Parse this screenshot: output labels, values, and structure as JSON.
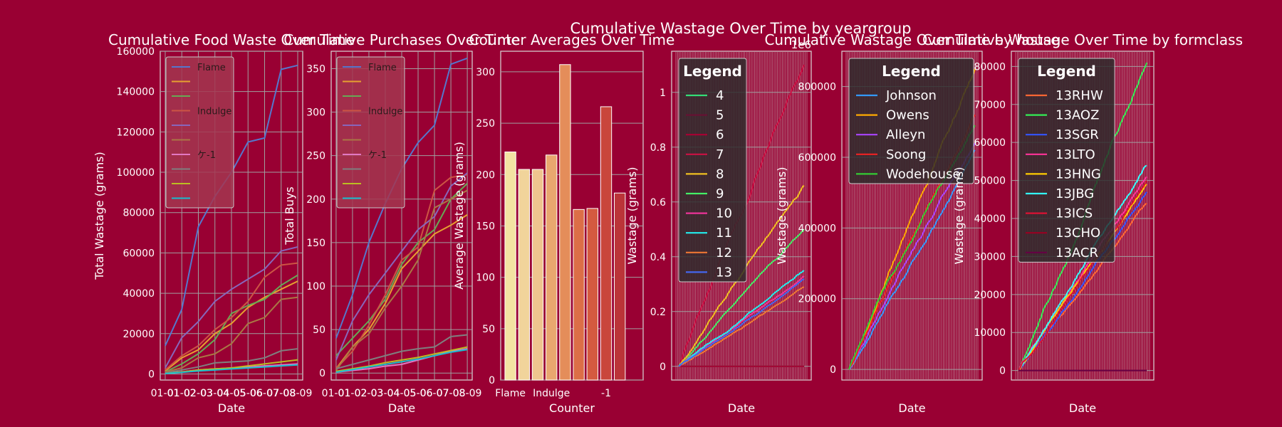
{
  "figure": {
    "suptitle": "Cumulative Wastage Over Time by yeargroup",
    "colors": {
      "background": "#990033",
      "panel_edge": "#d9d9d9",
      "grid": "#a0a0a0",
      "text": "#ffffff"
    }
  },
  "chart_data": [
    {
      "id": "food-waste",
      "type": "line",
      "title": "Cumulative Food Waste Over Time",
      "xlabel": "Date",
      "ylabel": "Total Wastage (grams)",
      "x": [
        "01-01",
        "01-02",
        "02-03",
        "03-04",
        "04-05",
        "05-06",
        "06-07",
        "07-08",
        "08-09"
      ],
      "xlim": [
        -0.3,
        8.3
      ],
      "ylim": [
        -3000,
        160000
      ],
      "yticks": [
        0,
        20000,
        40000,
        60000,
        80000,
        100000,
        120000,
        140000,
        160000
      ],
      "series": [
        {
          "name": "Flame",
          "color": "#5577cc",
          "values": [
            14000,
            32000,
            73000,
            88000,
            100000,
            115000,
            117000,
            151000,
            153000
          ]
        },
        {
          "name": "",
          "color": "#e6a030",
          "values": [
            1500,
            8000,
            12000,
            20000,
            25000,
            33000,
            38000,
            42000,
            46000
          ]
        },
        {
          "name": "",
          "color": "#66aa55",
          "values": [
            1000,
            5000,
            10000,
            17000,
            30000,
            34000,
            37000,
            44000,
            49000
          ]
        },
        {
          "name": "Indulge",
          "color": "#cc5544",
          "values": [
            2000,
            9000,
            14000,
            22000,
            28000,
            36000,
            48000,
            54000,
            55000
          ]
        },
        {
          "name": "",
          "color": "#8866bb",
          "values": [
            3000,
            18000,
            26000,
            36000,
            42000,
            47000,
            52000,
            61000,
            63000
          ]
        },
        {
          "name": "",
          "color": "#aa7744",
          "values": [
            1000,
            3000,
            8000,
            10000,
            15000,
            25000,
            28000,
            37000,
            38000
          ]
        },
        {
          "name": "ケ-1",
          "color": "#e377c2",
          "values": [
            500,
            1000,
            2000,
            2500,
            3000,
            3500,
            4000,
            4500,
            5000
          ]
        },
        {
          "name": "",
          "color": "#7f7f7f",
          "values": [
            500,
            2000,
            3500,
            5500,
            6000,
            6500,
            8000,
            11500,
            12500
          ]
        },
        {
          "name": "",
          "color": "#bcbd22",
          "values": [
            200,
            1000,
            2000,
            2500,
            3000,
            4000,
            5000,
            6000,
            7000
          ]
        },
        {
          "name": "",
          "color": "#17becf",
          "values": [
            200,
            800,
            1500,
            2000,
            2500,
            3000,
            3500,
            4000,
            4500
          ]
        }
      ]
    },
    {
      "id": "purchases",
      "type": "line",
      "title": "Cumulative Purchases Over Time",
      "xlabel": "Date",
      "ylabel": "Total Buys",
      "x": [
        "01-01",
        "01-02",
        "02-03",
        "03-04",
        "04-05",
        "05-06",
        "06-07",
        "07-08",
        "08-09"
      ],
      "xlim": [
        -0.3,
        8.3
      ],
      "ylim": [
        -8,
        370
      ],
      "yticks": [
        0,
        50,
        100,
        150,
        200,
        250,
        300,
        350
      ],
      "series": [
        {
          "name": "Flame",
          "color": "#5577cc",
          "values": [
            40,
            90,
            150,
            195,
            235,
            265,
            285,
            355,
            362
          ]
        },
        {
          "name": "",
          "color": "#e6a030",
          "values": [
            5,
            30,
            50,
            80,
            120,
            140,
            160,
            170,
            182
          ]
        },
        {
          "name": "",
          "color": "#66aa55",
          "values": [
            20,
            40,
            60,
            85,
            125,
            150,
            165,
            200,
            218
          ]
        },
        {
          "name": "Indulge",
          "color": "#cc5544",
          "values": [
            5,
            25,
            55,
            90,
            130,
            145,
            210,
            225,
            228
          ]
        },
        {
          "name": "",
          "color": "#8866bb",
          "values": [
            15,
            60,
            90,
            115,
            140,
            165,
            180,
            215,
            230
          ]
        },
        {
          "name": "",
          "color": "#aa7744",
          "values": [
            3,
            30,
            45,
            75,
            100,
            130,
            190,
            200,
            210
          ]
        },
        {
          "name": "ケ-1",
          "color": "#e377c2",
          "values": [
            1,
            3,
            5,
            8,
            10,
            15,
            20,
            25,
            28
          ]
        },
        {
          "name": "",
          "color": "#7f7f7f",
          "values": [
            5,
            10,
            15,
            20,
            25,
            28,
            30,
            42,
            44
          ]
        },
        {
          "name": "",
          "color": "#bcbd22",
          "values": [
            2,
            5,
            8,
            12,
            15,
            18,
            22,
            26,
            30
          ]
        },
        {
          "name": "",
          "color": "#17becf",
          "values": [
            1,
            4,
            7,
            10,
            13,
            16,
            20,
            24,
            27
          ]
        }
      ]
    },
    {
      "id": "counter-averages",
      "type": "bar",
      "title": "Counter Averages Over Time",
      "xlabel": "Counter",
      "ylabel": "Average Wastage (grams)",
      "categories": [
        "Flame",
        "",
        "",
        "Indulge",
        "",
        "",
        "",
        "-1",
        "",
        ""
      ],
      "values": [
        222,
        205,
        205,
        219,
        307,
        166,
        167,
        266,
        182,
        0
      ],
      "colors": [
        "#f3e3a2",
        "#f1d49b",
        "#efc48e",
        "#e9a76f",
        "#e48d5a",
        "#dc6e47",
        "#d45a40",
        "#c9463c",
        "#bb3438",
        "#a82632"
      ],
      "ylim": [
        0,
        320
      ],
      "yticks": [
        0,
        50,
        100,
        150,
        200,
        250,
        300
      ]
    },
    {
      "id": "yeargroup",
      "type": "line",
      "title": "",
      "xlabel": "Date",
      "ylabel": "Wastage (grams)",
      "offset_label": "1e6",
      "ylim": [
        -0.05,
        1.15
      ],
      "yticks": [
        0.0,
        0.2,
        0.4,
        0.6,
        0.8,
        1.0
      ],
      "legend_title": "Legend",
      "legend": [
        "4",
        "5",
        "6",
        "7",
        "8",
        "9",
        "10",
        "11",
        "12",
        "13"
      ],
      "series": [
        {
          "name": "4",
          "color": "#33dd77",
          "end": 0.0
        },
        {
          "name": "5",
          "color": "#661133",
          "end": 0.0
        },
        {
          "name": "6",
          "color": "#aa0033",
          "end": 0.0
        },
        {
          "name": "7",
          "color": "#cc1144",
          "end": 1.1
        },
        {
          "name": "8",
          "color": "#f0c020",
          "end": 0.66
        },
        {
          "name": "9",
          "color": "#44ee66",
          "end": 0.5
        },
        {
          "name": "10",
          "color": "#ee3399",
          "end": 0.33
        },
        {
          "name": "11",
          "color": "#22eeee",
          "end": 0.35
        },
        {
          "name": "12",
          "color": "#ee7733",
          "end": 0.29
        },
        {
          "name": "13",
          "color": "#4466ee",
          "end": 0.32
        }
      ]
    },
    {
      "id": "house",
      "type": "line",
      "title": "Cumulative Wastage Over Time by house",
      "xlabel": "Date",
      "ylabel": "Wastage (grams)",
      "ylim": [
        -30000,
        900000
      ],
      "yticks": [
        0,
        200000,
        400000,
        600000,
        800000
      ],
      "legend_title": "Legend",
      "legend": [
        "Johnson",
        "Owens",
        "Alleyn",
        "Soong",
        "Wodehouse"
      ],
      "series": [
        {
          "name": "Johnson",
          "color": "#3399ff",
          "end": 620000
        },
        {
          "name": "Owens",
          "color": "#ffaa00",
          "end": 850000
        },
        {
          "name": "Alleyn",
          "color": "#aa44ff",
          "end": 640000
        },
        {
          "name": "Soong",
          "color": "#ee2222",
          "end": 720000
        },
        {
          "name": "Wodehouse",
          "color": "#33cc33",
          "end": 690000
        }
      ]
    },
    {
      "id": "formclass",
      "type": "line",
      "title": "Cumulative Wastage Over Time by formclass",
      "xlabel": "Date",
      "ylabel": "Wastage (grams)",
      "ylim": [
        -2500,
        84000
      ],
      "yticks": [
        0,
        10000,
        20000,
        30000,
        40000,
        50000,
        60000,
        70000,
        80000
      ],
      "legend_title": "Legend",
      "legend": [
        "13RHW",
        "13AOZ",
        "13SGR",
        "13LTO",
        "13HNG",
        "13JBG",
        "13ICS",
        "13CHO",
        "13ACR"
      ],
      "series": [
        {
          "name": "13RHW",
          "color": "#ff6633",
          "end": 44000
        },
        {
          "name": "13AOZ",
          "color": "#33ee55",
          "end": 81000
        },
        {
          "name": "13SGR",
          "color": "#3355ff",
          "end": 47000
        },
        {
          "name": "13LTO",
          "color": "#ff3399",
          "end": 51000
        },
        {
          "name": "13HNG",
          "color": "#ffcc00",
          "end": 49000
        },
        {
          "name": "13JBG",
          "color": "#33ffff",
          "end": 54000
        },
        {
          "name": "13ICS",
          "color": "#dd1133",
          "end": 50000
        },
        {
          "name": "13CHO",
          "color": "#990022",
          "end": 0
        },
        {
          "name": "13ACR",
          "color": "#660044",
          "end": 0
        }
      ]
    }
  ]
}
